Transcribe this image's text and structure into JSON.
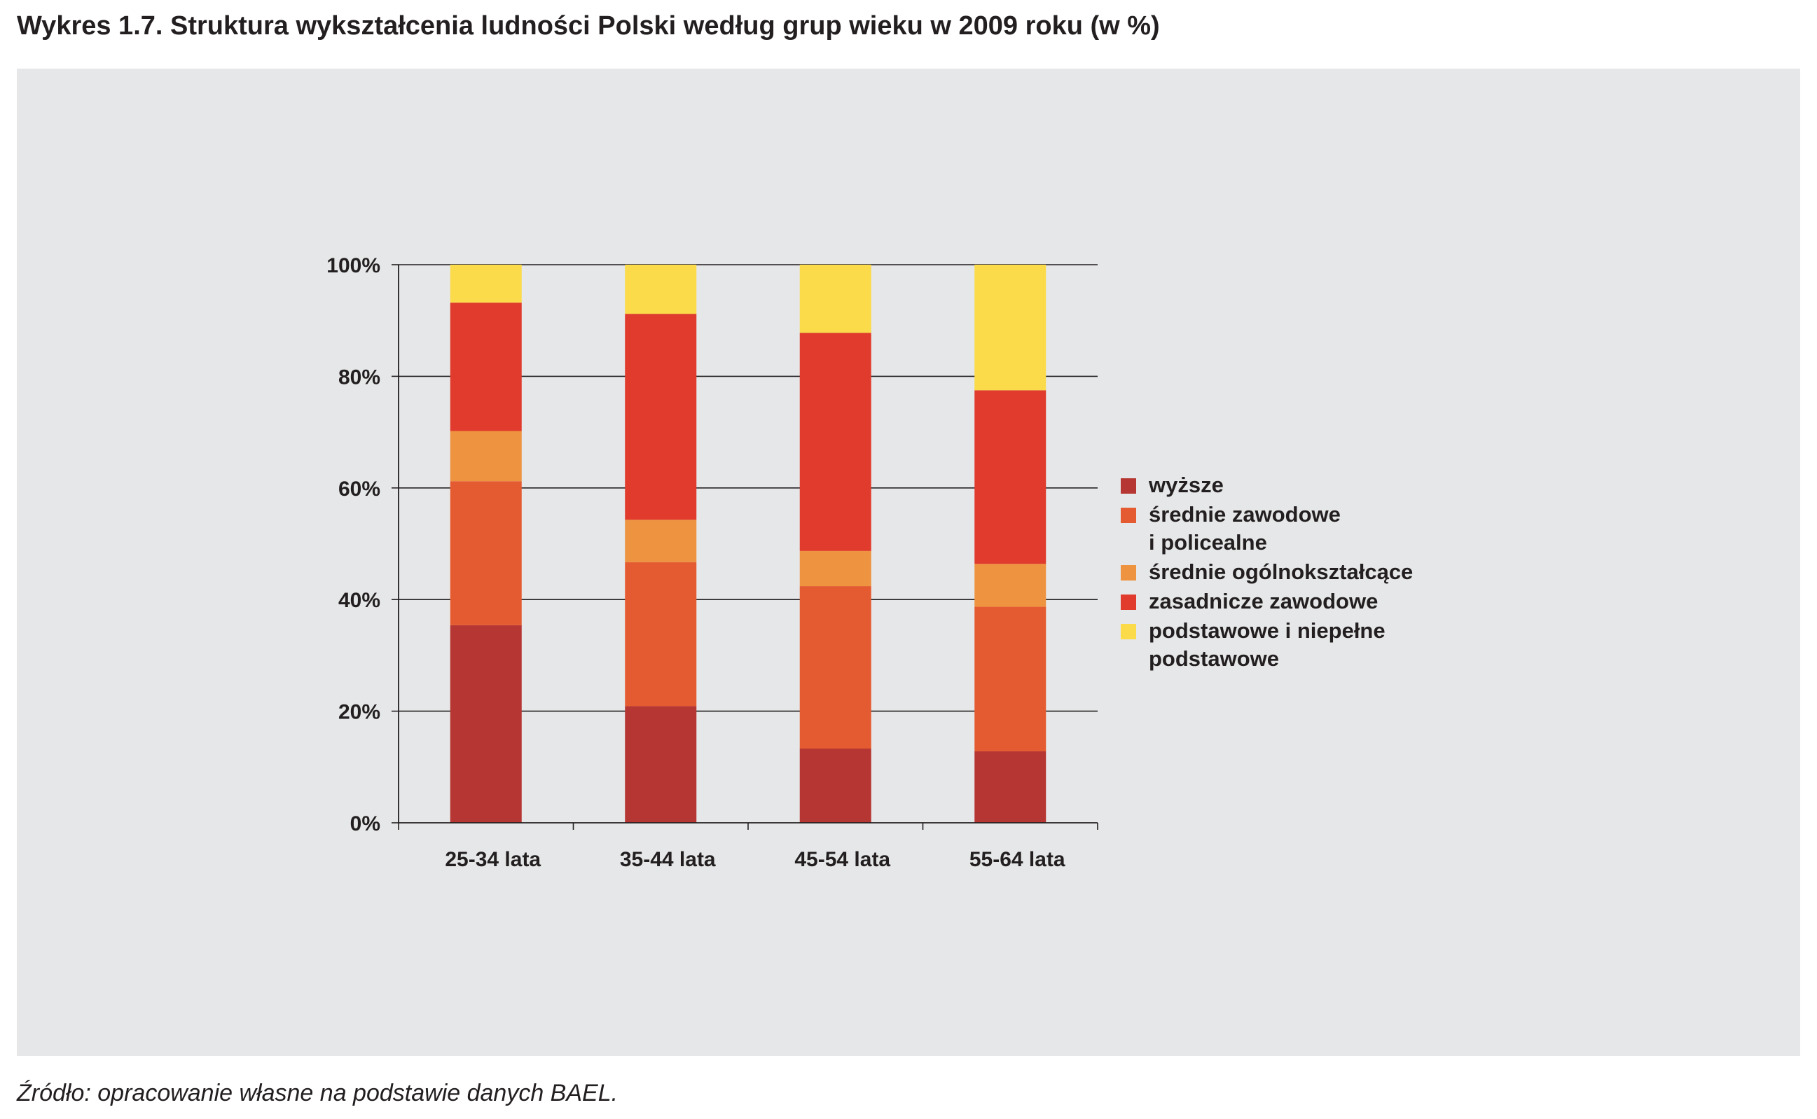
{
  "title": "Wykres 1.7. Struktura wykształcenia ludności Polski według grup wieku w 2009 roku (w %)",
  "source": "Źródło: opracowanie własne na podstawie danych BAEL.",
  "chart_data": {
    "type": "bar",
    "stacked": true,
    "categories": [
      "25-34 lata",
      "35-44 lata",
      "45-54 lata",
      "55-64 lata"
    ],
    "series": [
      {
        "name": "wyższe",
        "color": "#b53632",
        "values": [
          35.4,
          20.9,
          13.3,
          12.8
        ]
      },
      {
        "name": "średnie zawodowe\ni policealne",
        "color": "#e55b31",
        "values": [
          25.8,
          25.8,
          29.1,
          25.9
        ]
      },
      {
        "name": "średnie ogólnokształcące",
        "color": "#ee9340",
        "values": [
          9.0,
          7.6,
          6.3,
          7.7
        ]
      },
      {
        "name": "zasadnicze zawodowe",
        "color": "#e03b2c",
        "values": [
          23.0,
          36.9,
          39.1,
          31.1
        ]
      },
      {
        "name": "podstawowe i niepełne\npodstawowe",
        "color": "#fbdb4a",
        "values": [
          6.8,
          8.8,
          12.2,
          22.5
        ]
      }
    ],
    "ylim": [
      0,
      100
    ],
    "yticks": [
      "0%",
      "20%",
      "40%",
      "60%",
      "80%",
      "100%"
    ],
    "grid": true,
    "legend_position": "right"
  }
}
